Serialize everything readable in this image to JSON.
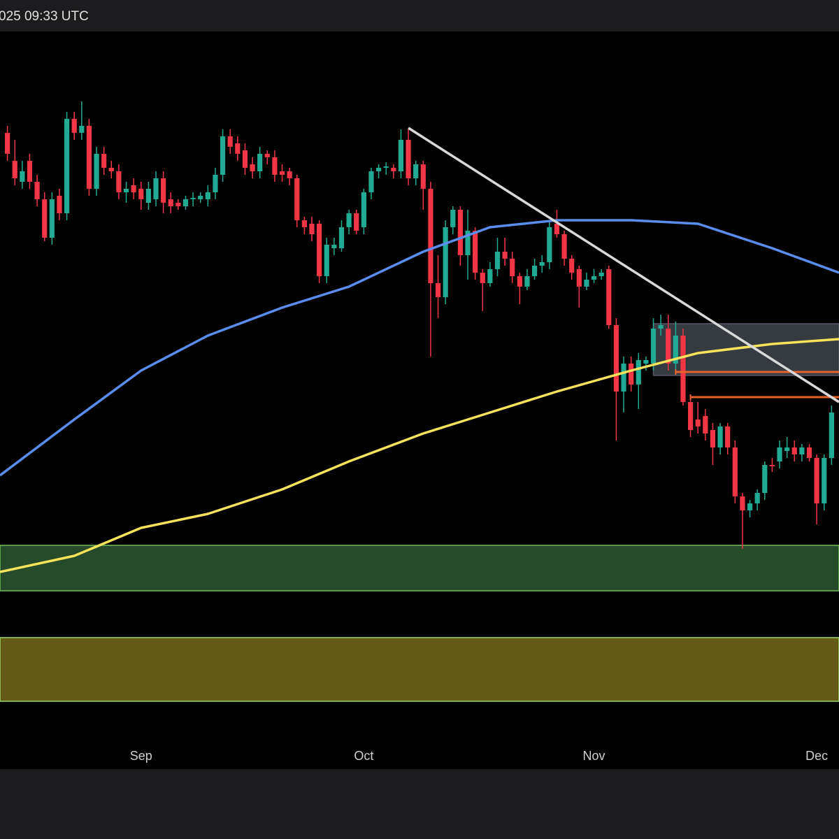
{
  "header": {
    "timestamp": "025 09:33 UTC"
  },
  "chart_data": {
    "type": "candlestick",
    "xlim": [
      -19,
      94
    ],
    "ylim": [
      0,
      1055
    ],
    "xticks": [
      {
        "value": 0,
        "label": "Sep"
      },
      {
        "value": 30,
        "label": "Oct"
      },
      {
        "value": 61,
        "label": "Nov"
      },
      {
        "value": 91,
        "label": "Dec"
      }
    ],
    "up_color": "#22ab94",
    "down_color": "#f23645",
    "x": [
      -18,
      -17,
      -16,
      -15,
      -14,
      -13,
      -12,
      -11,
      -10,
      -9,
      -8,
      -7,
      -6,
      -5,
      -4,
      -3,
      -2,
      -1,
      0,
      1,
      2,
      3,
      4,
      5,
      6,
      7,
      8,
      9,
      10,
      11,
      12,
      13,
      14,
      15,
      16,
      17,
      18,
      19,
      20,
      21,
      22,
      23,
      24,
      25,
      26,
      27,
      28,
      29,
      30,
      31,
      32,
      33,
      34,
      35,
      36,
      37,
      38,
      39,
      40,
      41,
      42,
      43,
      44,
      45,
      46,
      47,
      48,
      49,
      50,
      51,
      52,
      53,
      54,
      55,
      56,
      57,
      58,
      59,
      60,
      61,
      62,
      63,
      64,
      65,
      66,
      67,
      68,
      69,
      70,
      71,
      72,
      73,
      74,
      75,
      76,
      77,
      78,
      79,
      80,
      81,
      82,
      83,
      84,
      85,
      86,
      87,
      88,
      89,
      90,
      91,
      92,
      93
    ],
    "open": [
      910,
      870,
      840,
      870,
      840,
      815,
      760,
      820,
      795,
      930,
      910,
      920,
      830,
      880,
      860,
      855,
      825,
      835,
      830,
      810,
      815,
      845,
      815,
      810,
      805,
      815,
      815,
      815,
      825,
      850,
      905,
      895,
      885,
      865,
      855,
      880,
      875,
      855,
      855,
      845,
      785,
      780,
      780,
      705,
      745,
      745,
      775,
      795,
      775,
      825,
      855,
      860,
      860,
      855,
      900,
      845,
      865,
      830,
      695,
      675,
      775,
      800,
      735,
      770,
      710,
      695,
      715,
      740,
      730,
      705,
      690,
      705,
      720,
      725,
      780,
      765,
      730,
      715,
      690,
      700,
      705,
      715,
      635,
      540,
      580,
      550,
      580,
      580,
      630,
      630,
      580,
      620,
      525,
      500,
      505,
      485,
      460,
      490,
      460,
      390,
      370,
      380,
      395,
      435,
      440,
      455,
      460,
      450,
      460,
      445,
      380,
      445
    ],
    "high": [
      920,
      900,
      870,
      880,
      850,
      825,
      825,
      830,
      940,
      940,
      955,
      930,
      890,
      890,
      870,
      865,
      840,
      845,
      840,
      840,
      855,
      855,
      825,
      815,
      820,
      825,
      825,
      835,
      860,
      915,
      915,
      905,
      895,
      875,
      890,
      885,
      885,
      865,
      860,
      850,
      790,
      790,
      785,
      760,
      760,
      785,
      800,
      800,
      830,
      860,
      865,
      868,
      865,
      915,
      915,
      870,
      870,
      840,
      735,
      785,
      805,
      805,
      800,
      775,
      715,
      725,
      760,
      760,
      740,
      710,
      715,
      730,
      735,
      785,
      800,
      770,
      735,
      720,
      710,
      715,
      715,
      720,
      645,
      590,
      590,
      595,
      590,
      645,
      650,
      650,
      640,
      630,
      535,
      525,
      515,
      495,
      495,
      495,
      470,
      395,
      385,
      400,
      440,
      445,
      470,
      475,
      470,
      465,
      465,
      450,
      450,
      520
    ],
    "low": [
      870,
      835,
      830,
      830,
      805,
      755,
      750,
      785,
      785,
      900,
      900,
      820,
      820,
      850,
      845,
      815,
      810,
      815,
      800,
      800,
      805,
      795,
      795,
      800,
      800,
      805,
      810,
      805,
      815,
      840,
      880,
      870,
      850,
      845,
      845,
      865,
      840,
      840,
      835,
      775,
      765,
      755,
      695,
      695,
      735,
      740,
      765,
      765,
      765,
      815,
      845,
      850,
      845,
      845,
      835,
      835,
      800,
      590,
      645,
      665,
      765,
      720,
      700,
      700,
      655,
      690,
      705,
      720,
      695,
      665,
      685,
      700,
      710,
      715,
      760,
      720,
      700,
      660,
      685,
      695,
      700,
      630,
      470,
      510,
      540,
      515,
      570,
      570,
      620,
      570,
      570,
      520,
      475,
      480,
      470,
      435,
      450,
      450,
      380,
      315,
      360,
      370,
      385,
      425,
      430,
      445,
      440,
      440,
      440,
      350,
      370,
      435
    ],
    "close": [
      880,
      845,
      855,
      840,
      815,
      760,
      815,
      795,
      930,
      910,
      920,
      830,
      880,
      860,
      855,
      825,
      830,
      825,
      815,
      830,
      845,
      810,
      805,
      805,
      815,
      817,
      820,
      825,
      850,
      905,
      890,
      880,
      860,
      855,
      880,
      875,
      850,
      850,
      845,
      785,
      775,
      765,
      705,
      750,
      750,
      775,
      795,
      770,
      825,
      855,
      860,
      862,
      855,
      900,
      845,
      865,
      830,
      695,
      675,
      775,
      800,
      735,
      770,
      710,
      695,
      715,
      740,
      730,
      705,
      690,
      705,
      720,
      725,
      775,
      765,
      730,
      710,
      690,
      700,
      705,
      710,
      635,
      540,
      580,
      550,
      585,
      585,
      630,
      635,
      580,
      620,
      525,
      485,
      490,
      480,
      460,
      490,
      460,
      390,
      370,
      380,
      395,
      435,
      433,
      460,
      460,
      450,
      460,
      445,
      380,
      445,
      510
    ],
    "overlays": [
      {
        "color": "#5b8def",
        "x": [
          -19,
          -9,
          0,
          9,
          19,
          28,
          38,
          47,
          56,
          66,
          75,
          85,
          94
        ],
        "values": [
          420,
          500,
          570,
          620,
          660,
          690,
          740,
          775,
          785,
          785,
          780,
          745,
          710
        ]
      },
      {
        "color": "#f5e35a",
        "x": [
          -19,
          -9,
          0,
          9,
          19,
          28,
          38,
          47,
          56,
          66,
          75,
          85,
          94
        ],
        "values": [
          282,
          305,
          345,
          365,
          400,
          440,
          480,
          510,
          540,
          570,
          595,
          608,
          615
        ]
      },
      {
        "color": "#d9d9d9",
        "x": [
          36,
          94
        ],
        "values": [
          917,
          525
        ]
      }
    ],
    "levels": [
      {
        "color": "#e8622c",
        "x": [
          72,
          94
        ],
        "value": 568
      },
      {
        "color": "#e8622c",
        "x": [
          74,
          94
        ],
        "value": 532
      }
    ],
    "zones": [
      {
        "color": "rgba(120,130,145,0.45)",
        "border": "#555b66",
        "xlim": [
          69,
          94
        ],
        "ylim": [
          563,
          637
        ]
      },
      {
        "color": "#264a2a",
        "border": "#6fbf5a",
        "xlim": [
          -19,
          94
        ],
        "ylim": [
          255,
          320
        ]
      },
      {
        "color": "#645a18",
        "border": "#9cd86a",
        "xlim": [
          -19,
          94
        ],
        "ylim": [
          97,
          188
        ]
      }
    ]
  }
}
